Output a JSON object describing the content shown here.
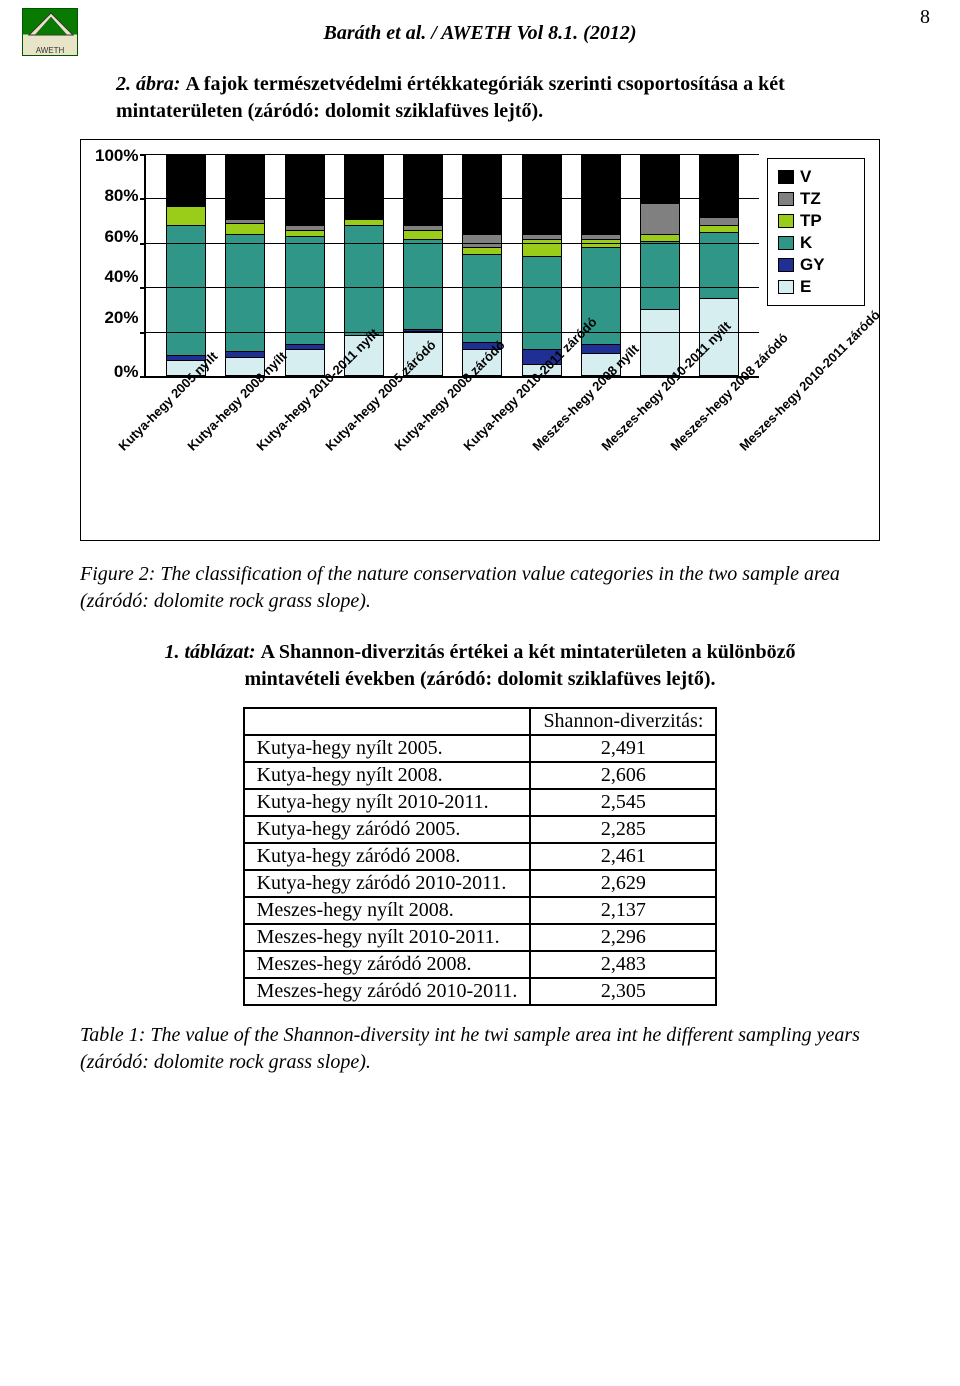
{
  "page_number": "8",
  "header": "Baráth et al. / AWETH Vol 8.1. (2012)",
  "figure": {
    "title_lead": "2. ábra:",
    "title_rest": "A fajok természetvédelmi értékkategóriák szerinti csoportosítása a két mintaterületen (záródó: dolomit sziklafüves lejtő).",
    "caption": "Figure 2: The classification of the nature conservation value categories in the two sample area (záródó: dolomite rock grass slope).",
    "type": "stacked-bar",
    "ylim": [
      0,
      100
    ],
    "ytick_step": 20,
    "ylabel_suffix": "%",
    "y_ticks": [
      "100%",
      "80%",
      "60%",
      "40%",
      "20%",
      "0%"
    ],
    "legend": [
      {
        "key": "V",
        "color": "#000000"
      },
      {
        "key": "TZ",
        "color": "#808080"
      },
      {
        "key": "TP",
        "color": "#9acd1a"
      },
      {
        "key": "K",
        "color": "#2f9688"
      },
      {
        "key": "GY",
        "color": "#1f2f93"
      },
      {
        "key": "E",
        "color": "#d7eef1"
      }
    ],
    "categories": [
      "Kutya-hegy 2005 nyílt",
      "Kutya-hegy 2008 nyílt",
      "Kutya-hegy 2010-2011 nyílt",
      "Kutya-hegy 2005 záródó",
      "Kutya-hegy 2008 záródó",
      "Kutya-hegy 2010-2011 záródó",
      "Meszes-hegy 2008 nyílt",
      "Meszes-hegy 2010-2011 nyílt",
      "Meszes-hegy 2008 záródó",
      "Meszes-hegy 2010-2011 záródó"
    ],
    "stacks_pct": [
      {
        "E": 7,
        "GY": 2,
        "K": 59,
        "TP": 9,
        "TZ": 0,
        "V": 23
      },
      {
        "E": 8,
        "GY": 3,
        "K": 53,
        "TP": 5,
        "TZ": 2,
        "V": 29
      },
      {
        "E": 12,
        "GY": 2,
        "K": 49,
        "TP": 3,
        "TZ": 2,
        "V": 32
      },
      {
        "E": 18,
        "GY": 0,
        "K": 50,
        "TP": 3,
        "TZ": 0,
        "V": 29
      },
      {
        "E": 20,
        "GY": 1,
        "K": 41,
        "TP": 4,
        "TZ": 2,
        "V": 32
      },
      {
        "E": 12,
        "GY": 3,
        "K": 40,
        "TP": 3,
        "TZ": 6,
        "V": 36
      },
      {
        "E": 5,
        "GY": 7,
        "K": 42,
        "TP": 8,
        "TZ": 2,
        "V": 36
      },
      {
        "E": 10,
        "GY": 4,
        "K": 44,
        "TP": 4,
        "TZ": 2,
        "V": 36
      },
      {
        "E": 30,
        "GY": 0,
        "K": 31,
        "TP": 3,
        "TZ": 14,
        "V": 22
      },
      {
        "E": 35,
        "GY": 0,
        "K": 30,
        "TP": 3,
        "TZ": 4,
        "V": 28
      }
    ],
    "tick_label_fontsize": 13,
    "y_label_fontsize": 17,
    "legend_fontsize": 17,
    "font_family": "Arial",
    "background_color": "#ffffff",
    "grid_color": "#000000",
    "border_color": "#000000"
  },
  "table": {
    "title_lead": "1. táblázat:",
    "title_rest": "A Shannon-diverzitás értékei a két mintaterületen a különböző mintavételi években (záródó: dolomit sziklafüves lejtő).",
    "caption": "Table 1: The value of the Shannon-diversity int he twi sample area int he different sampling years (záródó: dolomite rock grass slope).",
    "header_col": "Shannon-diverzitás:",
    "rows": [
      {
        "label": "Kutya-hegy nyílt 2005.",
        "value": "2,491"
      },
      {
        "label": "Kutya-hegy nyílt 2008.",
        "value": "2,606"
      },
      {
        "label": "Kutya-hegy nyílt 2010-2011.",
        "value": "2,545"
      },
      {
        "label": "Kutya-hegy záródó 2005.",
        "value": "2,285"
      },
      {
        "label": "Kutya-hegy záródó 2008.",
        "value": "2,461"
      },
      {
        "label": "Kutya-hegy záródó 2010-2011.",
        "value": "2,629"
      },
      {
        "label": "Meszes-hegy nyílt 2008.",
        "value": "2,137"
      },
      {
        "label": "Meszes-hegy nyílt 2010-2011.",
        "value": "2,296"
      },
      {
        "label": "Meszes-hegy záródó 2008.",
        "value": "2,483"
      },
      {
        "label": "Meszes-hegy záródó 2010-2011.",
        "value": "2,305"
      }
    ]
  }
}
